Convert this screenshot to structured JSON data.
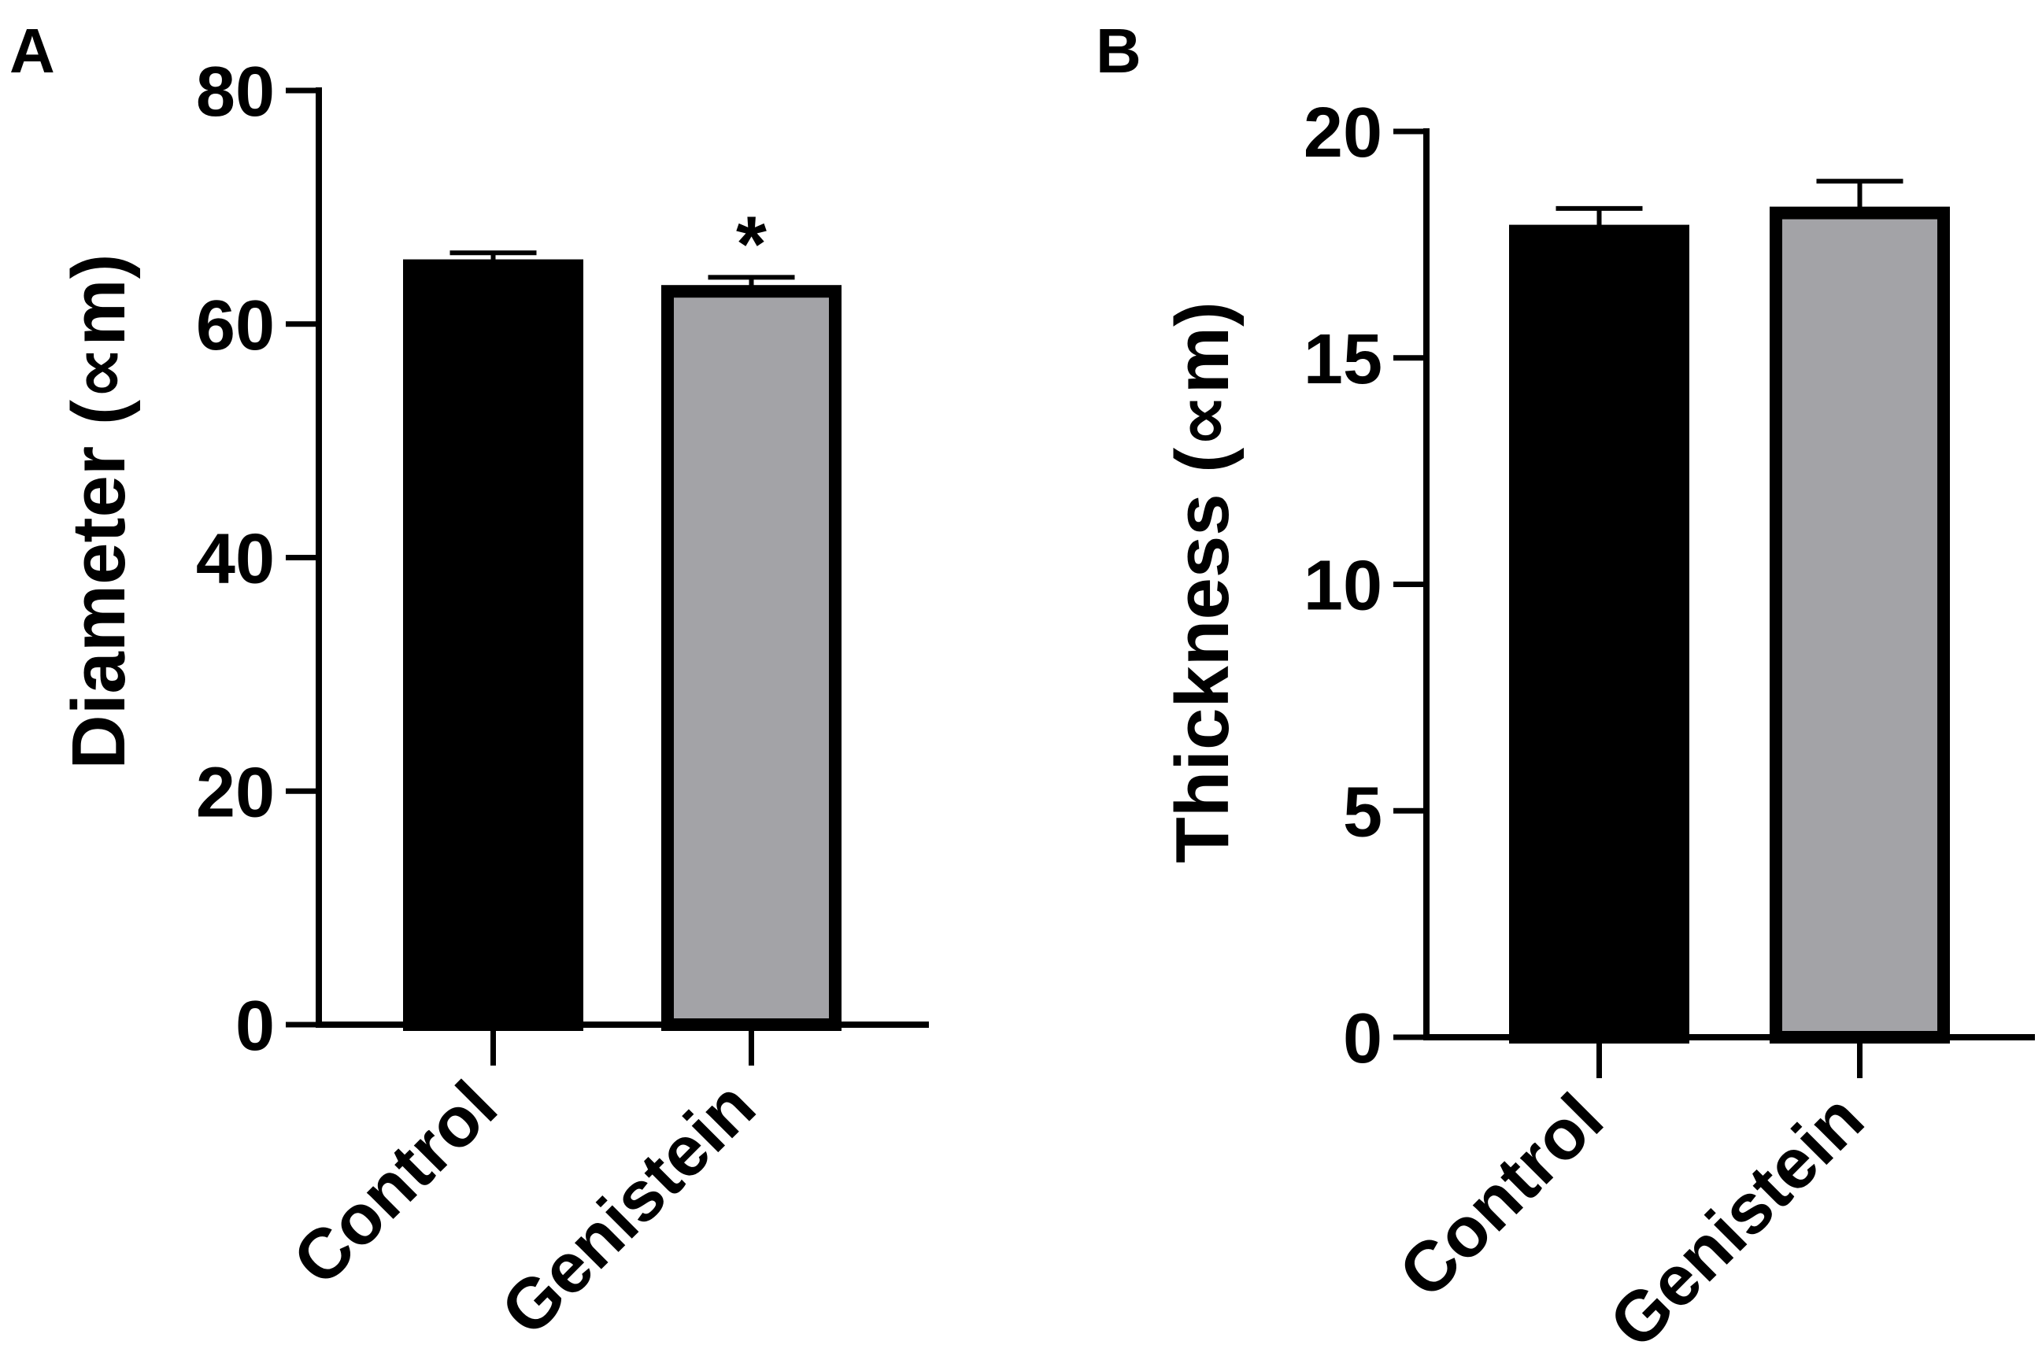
{
  "chart_data": [
    {
      "panel_label": "A",
      "type": "bar",
      "categories": [
        "Control",
        "Genistein"
      ],
      "values": [
        65,
        62.8
      ],
      "error": [
        1.1,
        1.2
      ],
      "bar_colors": [
        "#000000",
        "#a3a3a7"
      ],
      "annotations": [
        "",
        "*"
      ],
      "ylabel": "Diameter (∝m)",
      "xlabel": "",
      "ylim": [
        0,
        80
      ],
      "yticks": [
        0,
        20,
        40,
        60,
        80
      ]
    },
    {
      "panel_label": "B",
      "type": "bar",
      "categories": [
        "Control",
        "Genistein"
      ],
      "values": [
        17.8,
        18.2
      ],
      "error": [
        0.5,
        0.7
      ],
      "bar_colors": [
        "#000000",
        "#a3a3a7"
      ],
      "annotations": [
        "",
        ""
      ],
      "ylabel": "Thickness (∝m)",
      "xlabel": "",
      "ylim": [
        0,
        20
      ],
      "yticks": [
        0,
        5,
        10,
        15,
        20
      ]
    }
  ]
}
